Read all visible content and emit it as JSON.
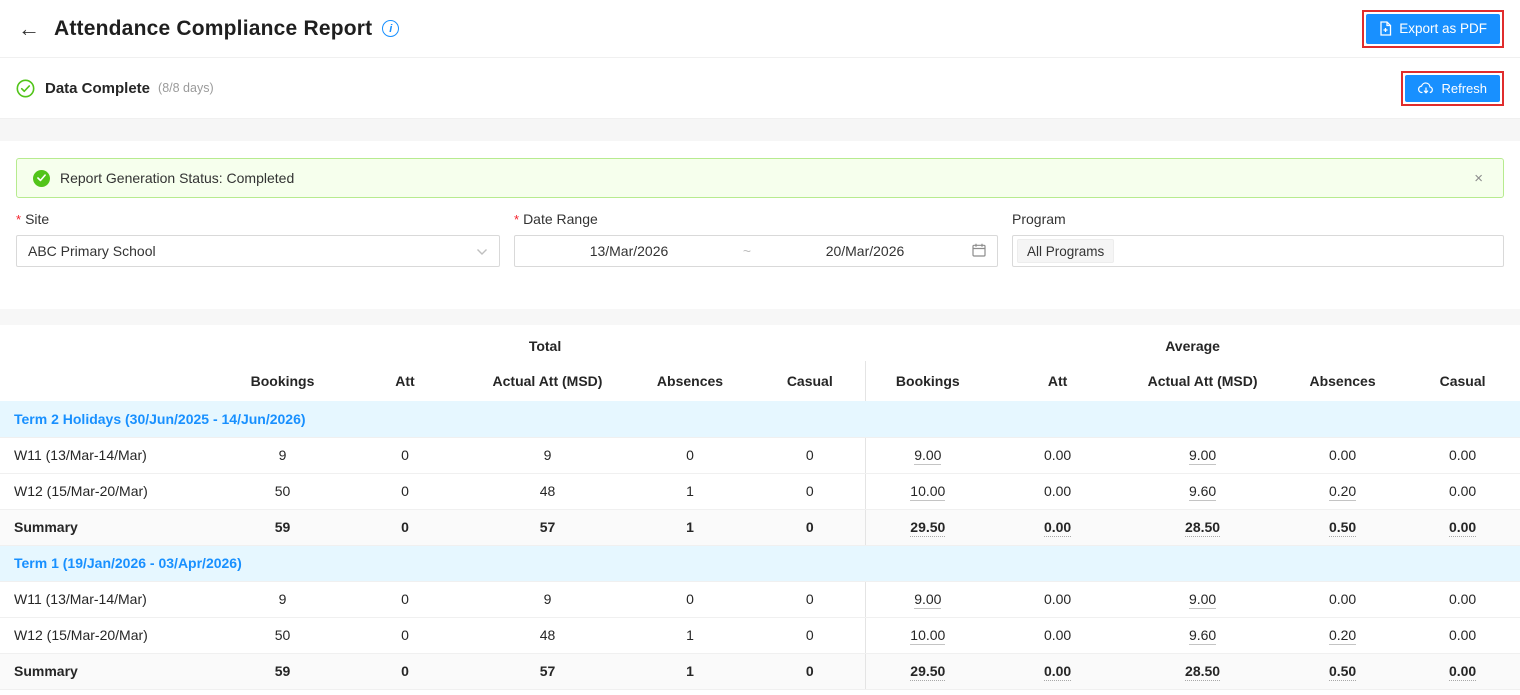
{
  "header": {
    "title": "Attendance Compliance Report",
    "export_button": "Export as PDF"
  },
  "status_bar": {
    "label": "Data Complete",
    "detail": "(8/8 days)",
    "refresh_button": "Refresh"
  },
  "alert": {
    "message": "Report Generation Status: Completed",
    "close_icon": "×"
  },
  "filters": {
    "site": {
      "label": "Site",
      "required": "*",
      "value": "ABC Primary School"
    },
    "date_range": {
      "label": "Date Range",
      "required": "*",
      "start": "13/Mar/2026",
      "separator": "~",
      "end": "20/Mar/2026"
    },
    "program": {
      "label": "Program",
      "value": "All Programs"
    }
  },
  "table": {
    "groups": {
      "total": "Total",
      "average": "Average"
    },
    "columns": [
      "Bookings",
      "Att",
      "Actual Att (MSD)",
      "Absences",
      "Casual"
    ],
    "sections": [
      {
        "title": "Term 2 Holidays (30/Jun/2025 - 14/Jun/2026)",
        "rows": [
          {
            "label": "W11 (13/Mar-14/Mar)",
            "summary": false,
            "total": [
              "9",
              "0",
              "9",
              "0",
              "0"
            ],
            "average": [
              "9.00",
              "0.00",
              "9.00",
              "0.00",
              "0.00"
            ]
          },
          {
            "label": "W12 (15/Mar-20/Mar)",
            "summary": false,
            "total": [
              "50",
              "0",
              "48",
              "1",
              "0"
            ],
            "average": [
              "10.00",
              "0.00",
              "9.60",
              "0.20",
              "0.00"
            ]
          },
          {
            "label": "Summary",
            "summary": true,
            "total": [
              "59",
              "0",
              "57",
              "1",
              "0"
            ],
            "average": [
              "29.50",
              "0.00",
              "28.50",
              "0.50",
              "0.00"
            ]
          }
        ]
      },
      {
        "title": "Term 1 (19/Jan/2026 - 03/Apr/2026)",
        "rows": [
          {
            "label": "W11 (13/Mar-14/Mar)",
            "summary": false,
            "total": [
              "9",
              "0",
              "9",
              "0",
              "0"
            ],
            "average": [
              "9.00",
              "0.00",
              "9.00",
              "0.00",
              "0.00"
            ]
          },
          {
            "label": "W12 (15/Mar-20/Mar)",
            "summary": false,
            "total": [
              "50",
              "0",
              "48",
              "1",
              "0"
            ],
            "average": [
              "10.00",
              "0.00",
              "9.60",
              "0.20",
              "0.00"
            ]
          },
          {
            "label": "Summary",
            "summary": true,
            "total": [
              "59",
              "0",
              "57",
              "1",
              "0"
            ],
            "average": [
              "29.50",
              "0.00",
              "28.50",
              "0.50",
              "0.00"
            ]
          }
        ]
      }
    ]
  },
  "colors": {
    "primary": "#1890ff",
    "success": "#52c41a",
    "annotation_red": "#e02c2c",
    "section_text": "#1890ff",
    "section_bg": "#e6f7ff",
    "alert_bg": "#f6ffed",
    "alert_border": "#b7eb8f"
  }
}
